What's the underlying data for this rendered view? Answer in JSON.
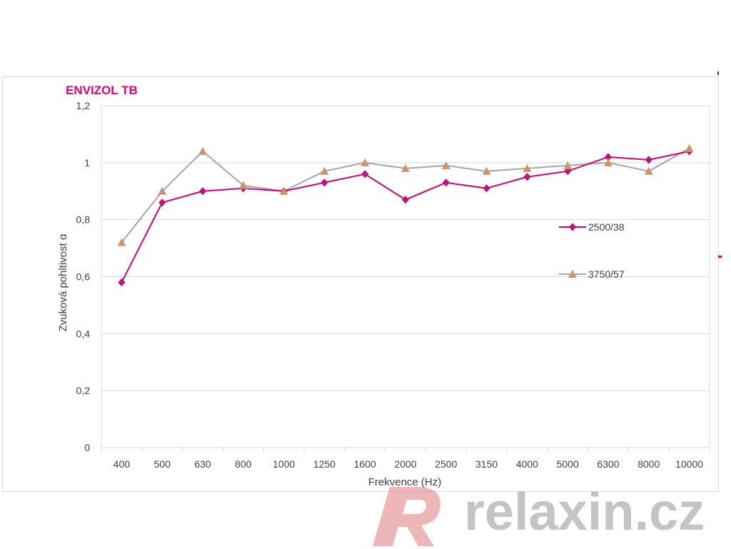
{
  "colors": {
    "series_a": "#d6006f",
    "series_a_marker": "#b0197f",
    "series_b": "#a6a6a6",
    "series_b_marker": "#c8956c",
    "title": "#e2007a",
    "grid": "#d9d9d9",
    "watermark": "#c4c4c4",
    "watermark_logo": "#e9a4a4"
  },
  "watermark": {
    "text": "relaxin.cz"
  },
  "chart_data": {
    "type": "line",
    "title": "ENVIZOL TB",
    "xlabel": "Frekvence (Hz)",
    "ylabel": "Zvuková pohltivost α",
    "categories": [
      "400",
      "500",
      "630",
      "800",
      "1000",
      "1250",
      "1600",
      "2000",
      "2500",
      "3150",
      "4000",
      "5000",
      "6300",
      "8000",
      "10000"
    ],
    "ylim": [
      0,
      1.2
    ],
    "yticks": [
      "0",
      "0,2",
      "0,4",
      "0,6",
      "0,8",
      "1",
      "1,2"
    ],
    "grid": true,
    "legend_position": "right",
    "series": [
      {
        "name": "2500/38",
        "marker": "diamond",
        "values": [
          0.58,
          0.86,
          0.9,
          0.91,
          0.9,
          0.93,
          0.96,
          0.87,
          0.93,
          0.91,
          0.95,
          0.97,
          1.02,
          1.01,
          1.04
        ]
      },
      {
        "name": "3750/57",
        "marker": "triangle",
        "values": [
          0.72,
          0.9,
          1.04,
          0.92,
          0.9,
          0.97,
          1.0,
          0.98,
          0.99,
          0.97,
          0.98,
          0.99,
          1.0,
          0.97,
          1.05
        ]
      }
    ]
  }
}
